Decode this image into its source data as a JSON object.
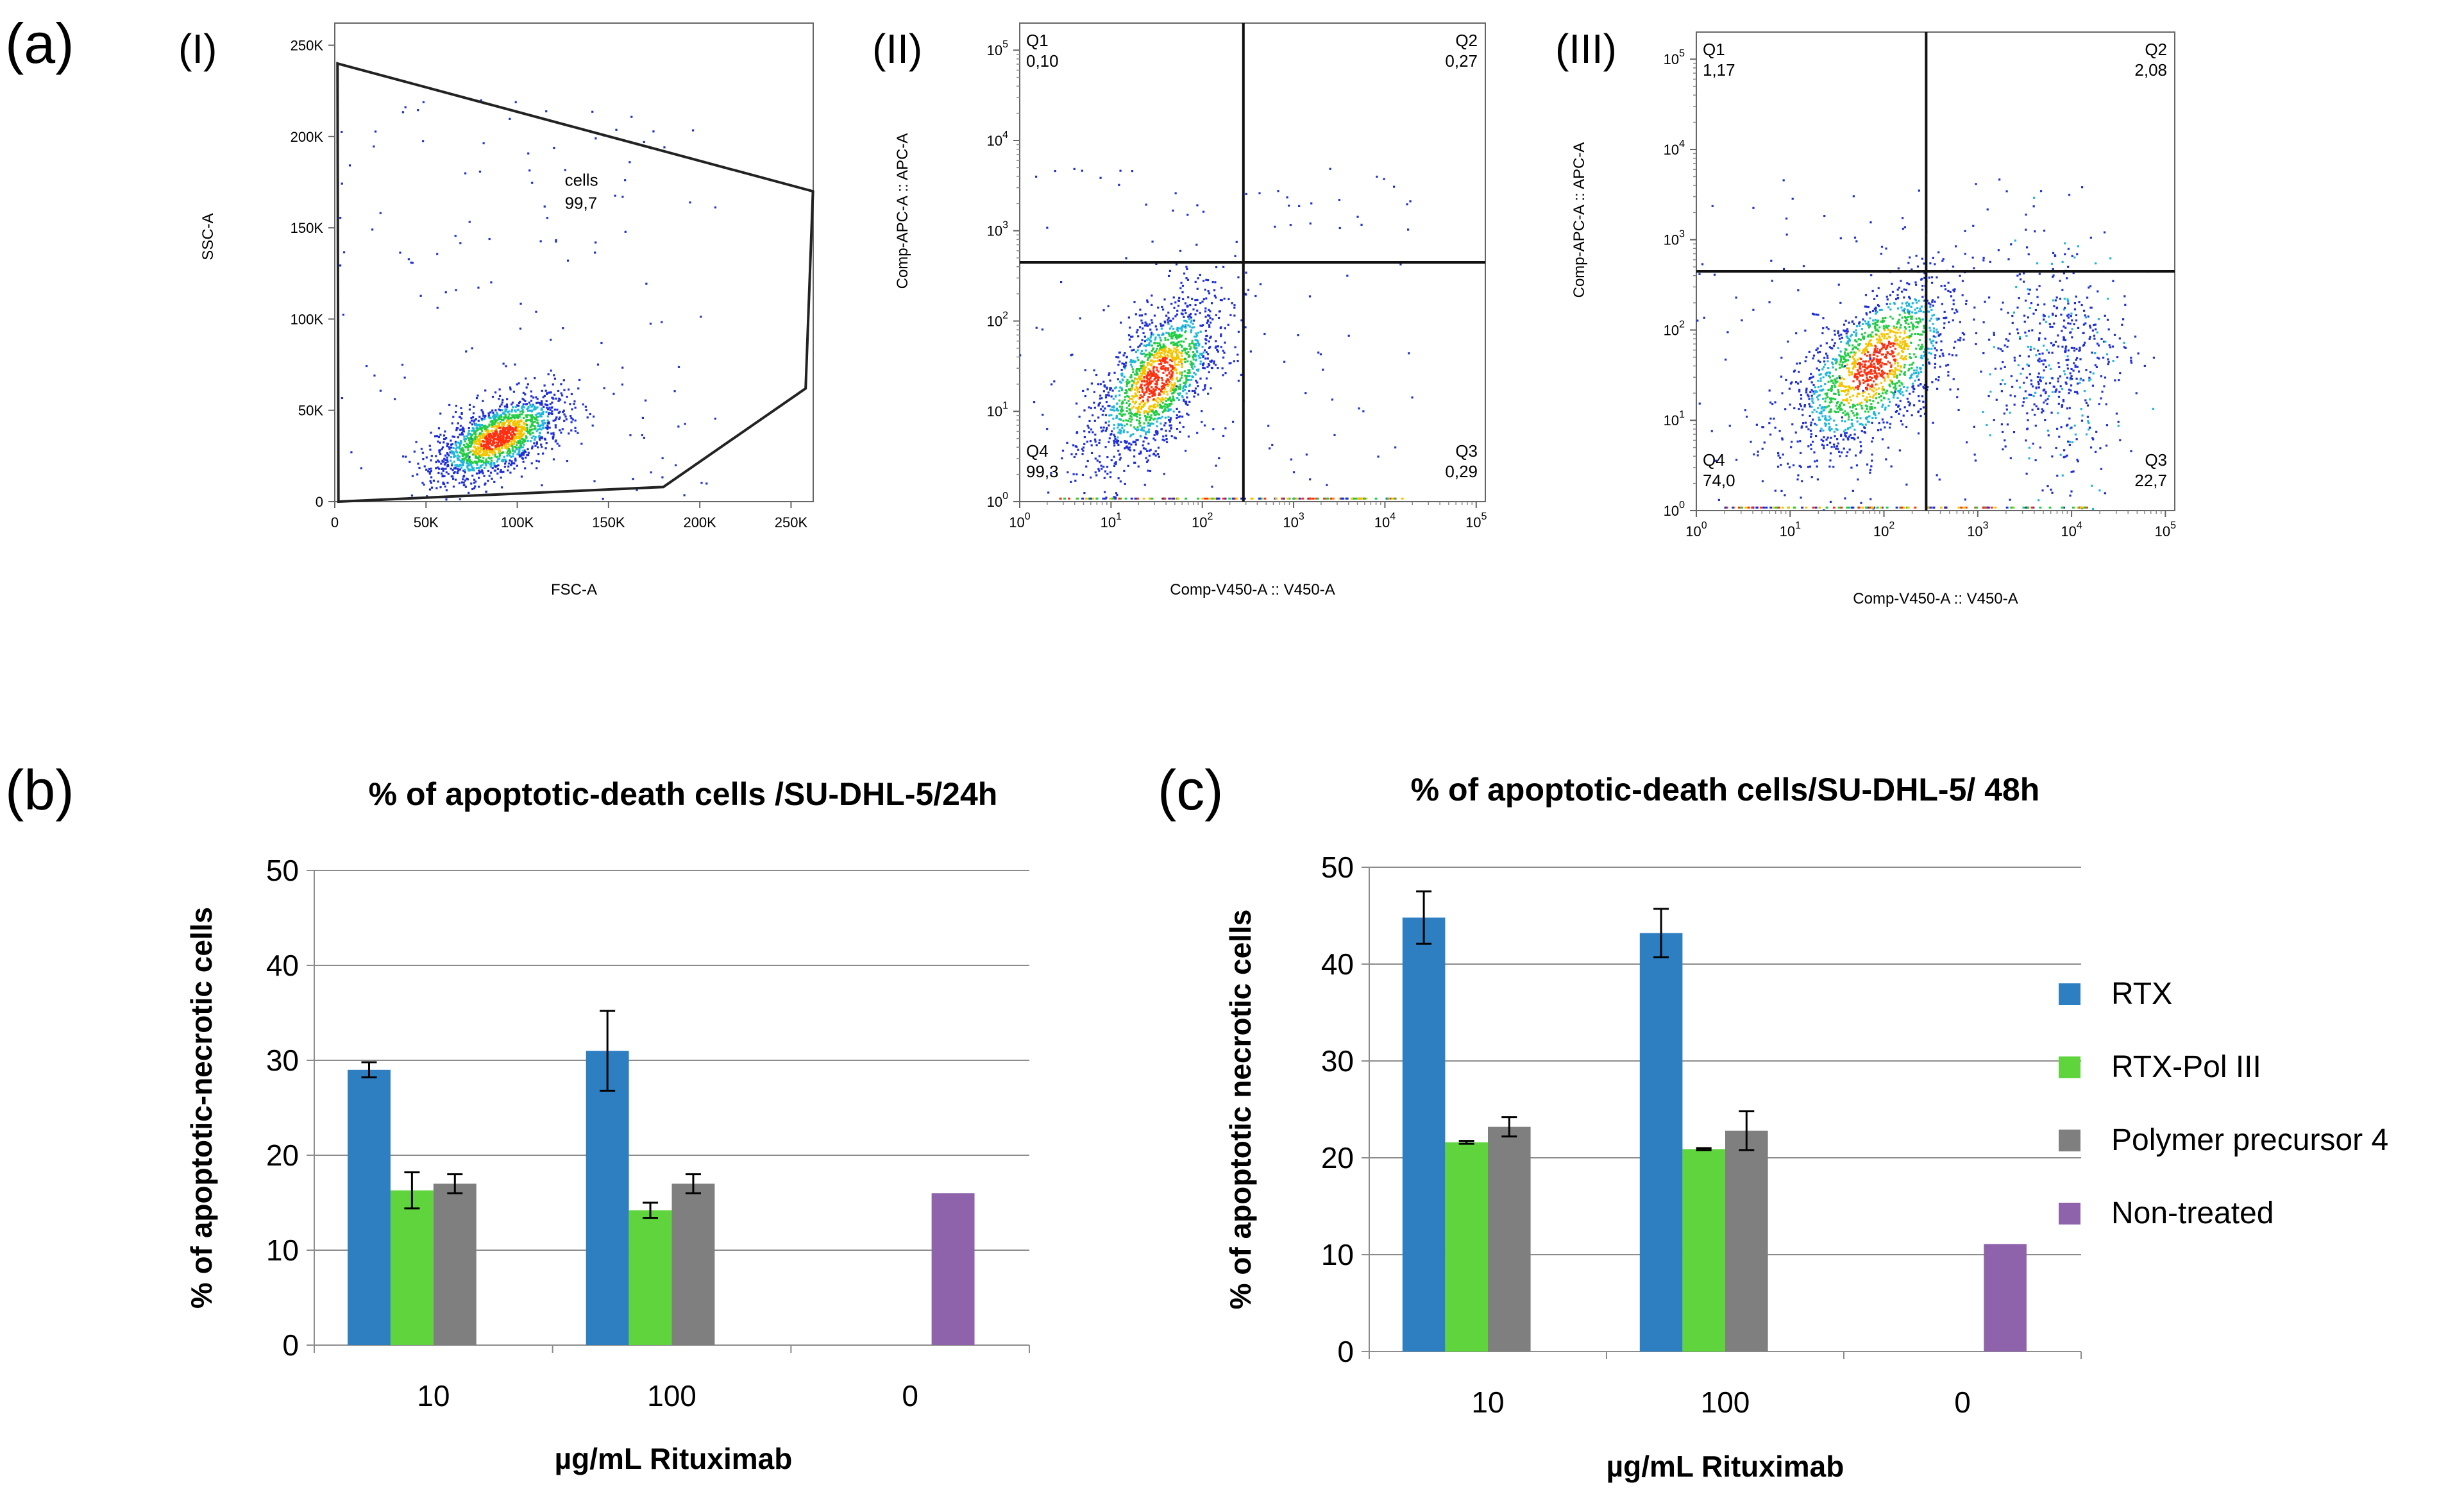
{
  "panel_labels": {
    "a": "(a)",
    "b": "(b)",
    "c": "(c)"
  },
  "flow_panels": [
    {
      "label": "(I)",
      "type": "scatter",
      "xlabel": "FSC-A",
      "ylabel": "SSC-A",
      "xticks": [
        "0",
        "50K",
        "100K",
        "150K",
        "200K",
        "250K"
      ],
      "yticks": [
        "0",
        "50K",
        "100K",
        "150K",
        "200K",
        "250K"
      ],
      "xlim": [
        0,
        262144
      ],
      "ylim": [
        0,
        262144
      ],
      "gate_name": "cells",
      "gate_value": "99,7",
      "gate_polygon": [
        [
          1500,
          240000
        ],
        [
          262000,
          170000
        ],
        [
          258000,
          62000
        ],
        [
          180000,
          8000
        ],
        [
          2000,
          0
        ]
      ],
      "cluster_center": [
        90000,
        35000
      ],
      "cluster_spread": [
        18000,
        12000
      ],
      "colors": {
        "gate": "#222222",
        "low": "#1f2fd6",
        "mid": "#22cc44",
        "high": "#ff3010"
      }
    },
    {
      "label": "(II)",
      "type": "scatter",
      "xlabel": "Comp-V450-A :: V450-A",
      "ylabel": "Comp-APC-A :: APC-A",
      "xticks": [
        "10^0",
        "10^1",
        "10^2",
        "10^3",
        "10^4",
        "10^5"
      ],
      "yticks": [
        "10^0",
        "10^1",
        "10^2",
        "10^3",
        "10^4",
        "10^5"
      ],
      "xlim": [
        0,
        5.1
      ],
      "ylim": [
        0,
        5.3
      ],
      "quadrant_split": [
        2.45,
        2.65
      ],
      "quadrants": [
        {
          "name": "Q1",
          "value": "0,10"
        },
        {
          "name": "Q2",
          "value": "0,27"
        },
        {
          "name": "Q3",
          "value": "0,29"
        },
        {
          "name": "Q4",
          "value": "99,3"
        }
      ],
      "cluster_center": [
        1.5,
        1.35
      ],
      "cluster_spread": [
        0.35,
        0.45
      ]
    },
    {
      "label": "(III)",
      "type": "scatter",
      "xlabel": "Comp-V450-A :: V450-A",
      "ylabel": "Comp-APC-A :: APC-A",
      "xticks": [
        "10^0",
        "10^1",
        "10^2",
        "10^3",
        "10^4",
        "10^5"
      ],
      "yticks": [
        "10^0",
        "10^1",
        "10^2",
        "10^3",
        "10^4",
        "10^5"
      ],
      "xlim": [
        0,
        5.1
      ],
      "ylim": [
        0,
        5.3
      ],
      "quadrant_split": [
        2.45,
        2.65
      ],
      "quadrants": [
        {
          "name": "Q1",
          "value": "1,17"
        },
        {
          "name": "Q2",
          "value": "2,08"
        },
        {
          "name": "Q3",
          "value": "22,7"
        },
        {
          "name": "Q4",
          "value": "74,0"
        }
      ],
      "cluster_center": [
        1.9,
        1.6
      ],
      "cluster_spread": [
        0.45,
        0.5
      ]
    }
  ],
  "chart_data": [
    {
      "type": "bar",
      "title": "% of apoptotic-death cells /SU-DHL-5/24h",
      "xlabel": "µg/mL Rituximab",
      "ylabel": "% of apoptotic-necrotic cells",
      "ylim": [
        0,
        50
      ],
      "yticks": [
        0,
        10,
        20,
        30,
        40,
        50
      ],
      "categories": [
        "10",
        "100",
        "0"
      ],
      "series": [
        {
          "name": "RTX",
          "color": "#2e7fc2",
          "values": [
            29,
            31,
            null
          ],
          "errors": [
            0.8,
            4.2,
            null
          ]
        },
        {
          "name": "RTX-Pol III",
          "color": "#5fd43d",
          "values": [
            16.3,
            14.2,
            null
          ],
          "errors": [
            1.9,
            0.8,
            null
          ]
        },
        {
          "name": "Polymer precursor 4",
          "color": "#7f7f7f",
          "values": [
            17,
            17,
            null
          ],
          "errors": [
            1.0,
            1.0,
            null
          ]
        },
        {
          "name": "Non-treated",
          "color": "#8f63ab",
          "values": [
            null,
            null,
            16
          ],
          "errors": [
            null,
            null,
            null
          ]
        }
      ]
    },
    {
      "type": "bar",
      "title": "% of apoptotic-death cells/SU-DHL-5/ 48h",
      "xlabel": "µg/mL Rituximab",
      "ylabel": "% of apoptotic necrotic cells",
      "ylim": [
        0,
        50
      ],
      "yticks": [
        0,
        10,
        20,
        30,
        40,
        50
      ],
      "categories": [
        "10",
        "100",
        "0"
      ],
      "series": [
        {
          "name": "RTX",
          "color": "#2e7fc2",
          "values": [
            44.8,
            43.2,
            null
          ],
          "errors": [
            2.7,
            2.5,
            null
          ]
        },
        {
          "name": "RTX-Pol III",
          "color": "#5fd43d",
          "values": [
            21.6,
            20.9,
            null
          ],
          "errors": [
            0.15,
            0.1,
            null
          ]
        },
        {
          "name": "Polymer precursor 4",
          "color": "#7f7f7f",
          "values": [
            23.2,
            22.8,
            null
          ],
          "errors": [
            1.0,
            2.0,
            null
          ]
        },
        {
          "name": "Non-treated",
          "color": "#8f63ab",
          "values": [
            null,
            null,
            11.1
          ],
          "errors": [
            null,
            null,
            null
          ]
        }
      ]
    }
  ],
  "legend": {
    "items": [
      {
        "label": "RTX",
        "color": "#2e7fc2"
      },
      {
        "label": "RTX-Pol III",
        "color": "#5fd43d"
      },
      {
        "label": "Polymer precursor 4",
        "color": "#7f7f7f"
      },
      {
        "label": "Non-treated",
        "color": "#8f63ab"
      }
    ]
  }
}
